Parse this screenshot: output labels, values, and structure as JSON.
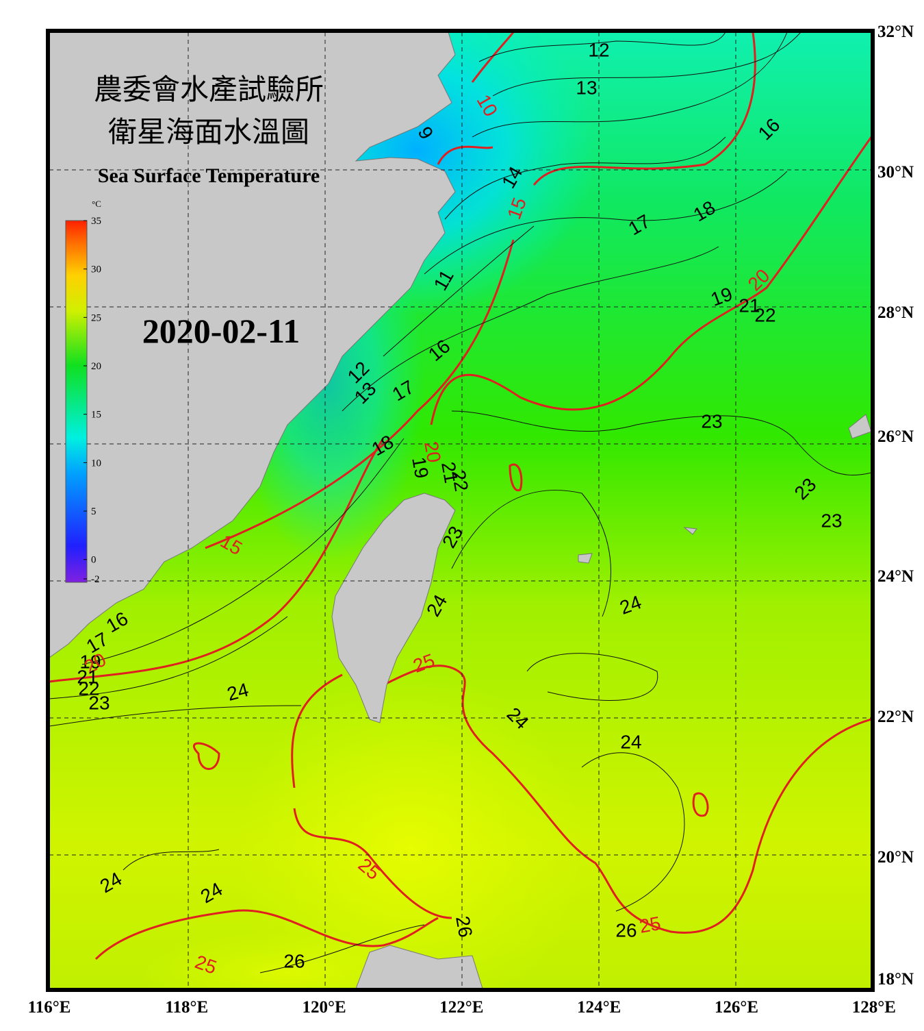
{
  "title_zh": [
    "農委會水產試驗所",
    "衛星海面水溫圖"
  ],
  "title_en": "Sea Surface Temperature",
  "date": "2020-02-11",
  "colorbar": {
    "unit": "°C",
    "range": [
      -2,
      35
    ],
    "ticks": [
      35,
      30,
      25,
      20,
      15,
      10,
      5,
      0,
      -2
    ]
  },
  "lat_labels": [
    "32°N",
    "30°N",
    "28°N",
    "26°N",
    "24°N",
    "22°N",
    "20°N",
    "18°N"
  ],
  "lon_labels": [
    "116°E",
    "118°E",
    "120°E",
    "122°E",
    "124°E",
    "126°E",
    "128°E"
  ],
  "contour_labels": [
    {
      "text": "12",
      "color": "black"
    },
    {
      "text": "13",
      "color": "black"
    },
    {
      "text": "10",
      "color": "red"
    },
    {
      "text": "9",
      "color": "black"
    },
    {
      "text": "16",
      "color": "black"
    },
    {
      "text": "14",
      "color": "black"
    },
    {
      "text": "15",
      "color": "red"
    },
    {
      "text": "17",
      "color": "black"
    },
    {
      "text": "18",
      "color": "black"
    },
    {
      "text": "11",
      "color": "black"
    },
    {
      "text": "19",
      "color": "black"
    },
    {
      "text": "20",
      "color": "red"
    },
    {
      "text": "21",
      "color": "black"
    },
    {
      "text": "22",
      "color": "black"
    },
    {
      "text": "16",
      "color": "black"
    },
    {
      "text": "12",
      "color": "black"
    },
    {
      "text": "13",
      "color": "black"
    },
    {
      "text": "17",
      "color": "black"
    },
    {
      "text": "23",
      "color": "black"
    },
    {
      "text": "18",
      "color": "black"
    },
    {
      "text": "20",
      "color": "red"
    },
    {
      "text": "19",
      "color": "black"
    },
    {
      "text": "21",
      "color": "black"
    },
    {
      "text": "22",
      "color": "black"
    },
    {
      "text": "23",
      "color": "black"
    },
    {
      "text": "23",
      "color": "black"
    },
    {
      "text": "23",
      "color": "black"
    },
    {
      "text": "15",
      "color": "red"
    },
    {
      "text": "16",
      "color": "black"
    },
    {
      "text": "24",
      "color": "black"
    },
    {
      "text": "24",
      "color": "black"
    },
    {
      "text": "17",
      "color": "black"
    },
    {
      "text": "19",
      "color": "black"
    },
    {
      "text": "20",
      "color": "red"
    },
    {
      "text": "21",
      "color": "black"
    },
    {
      "text": "22",
      "color": "black"
    },
    {
      "text": "23",
      "color": "black"
    },
    {
      "text": "24",
      "color": "black"
    },
    {
      "text": "25",
      "color": "red"
    },
    {
      "text": "24",
      "color": "black"
    },
    {
      "text": "24",
      "color": "black"
    },
    {
      "text": "25",
      "color": "red"
    },
    {
      "text": "24",
      "color": "black"
    },
    {
      "text": "24",
      "color": "black"
    },
    {
      "text": "26",
      "color": "black"
    },
    {
      "text": "26",
      "color": "black"
    },
    {
      "text": "25",
      "color": "red"
    },
    {
      "text": "26",
      "color": "black"
    },
    {
      "text": "25",
      "color": "red"
    }
  ]
}
